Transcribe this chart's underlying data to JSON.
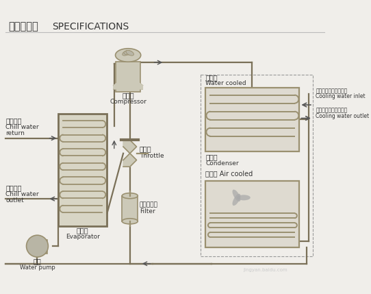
{
  "bg": "#f0eeea",
  "lc": "#9a9070",
  "lc2": "#7a7058",
  "bf": "#ccc9b8",
  "bf2": "#b8b5a5",
  "coil": "#9a9070",
  "dc": "#999999",
  "tc": "#333333",
  "title_zh": "结构示意图",
  "title_en": "SPECIFICATIONS",
  "comp_zh": "压缩机",
  "comp_en": "Compressor",
  "evap_zh": "蒸发器",
  "evap_en": "Evaporator",
  "throt_zh": "节流阀",
  "throt_en": "Throttle",
  "filt_zh": "干燥过滤器",
  "filt_en": "Filter",
  "pump_zh": "水泵",
  "pump_en": "Water pump",
  "wc_zh": "水冷式",
  "wc_en": "Water cooled",
  "ac_zh": "风冷式",
  "ac_en": "Air cooled",
  "cond_zh": "冷凝器",
  "cond_en": "Condenser",
  "inlet_zh": "入水口（连散热水塔）",
  "inlet_en": "Cooling water inlet",
  "outlet_zh": "出水口（连散热水塔）",
  "outlet_en": "Cooling water outlet",
  "chwr_zh": "冰水回口",
  "chwr_en1": "Chill water",
  "chwr_en2": "return",
  "chwo_zh": "冰水出口",
  "chwo_en1": "Chill water",
  "chwo_en2": "outlet"
}
